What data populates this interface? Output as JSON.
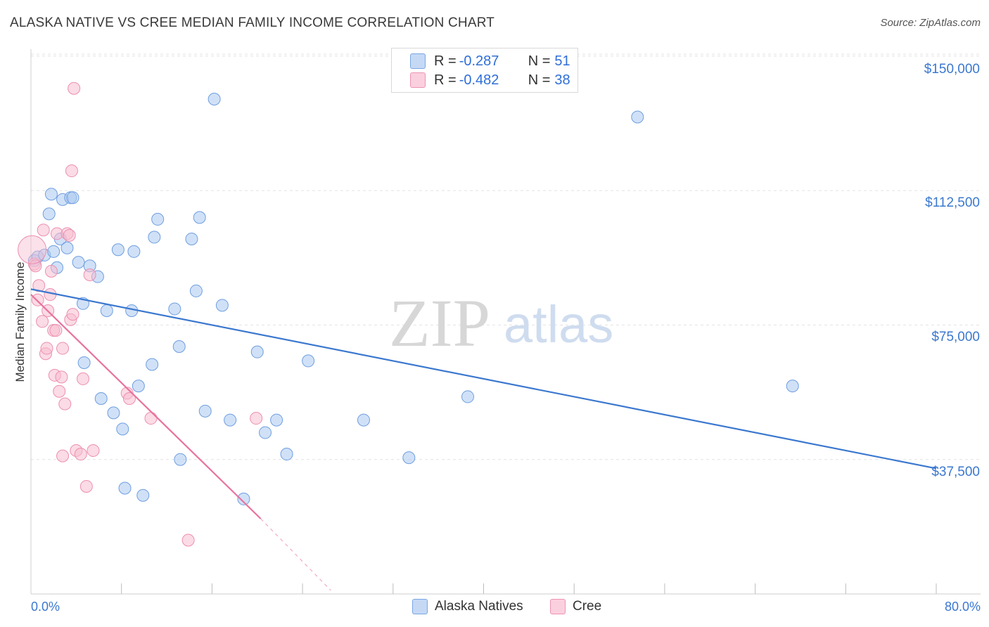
{
  "header": {
    "title": "ALASKA NATIVE VS CREE MEDIAN FAMILY INCOME CORRELATION CHART",
    "source": "Source: ZipAtlas.com"
  },
  "watermark": {
    "zip": "ZIP",
    "atlas": "atlas"
  },
  "legend": {
    "rows": [
      {
        "r_label": "R = ",
        "r_value": "-0.287",
        "n_label": "N = ",
        "n_value": "51",
        "color": "#aac8f0"
      },
      {
        "r_label": "R = ",
        "r_value": "-0.482",
        "n_label": "N = ",
        "n_value": "38",
        "color": "#f7bdd0"
      }
    ]
  },
  "bottom_legend": {
    "items": [
      {
        "label": "Alaska Natives",
        "color": "#aac8f0"
      },
      {
        "label": "Cree",
        "color": "#f7bdd0"
      }
    ]
  },
  "chart_data": {
    "type": "scatter",
    "title": "ALASKA NATIVE VS CREE MEDIAN FAMILY INCOME CORRELATION CHART",
    "xlabel": "",
    "ylabel": "Median Family Income",
    "x_tick_labels": [
      "0.0%",
      "80.0%"
    ],
    "y_tick_labels": [
      "$150,000",
      "$112,500",
      "$75,000",
      "$37,500"
    ],
    "y_ticks": [
      150000,
      112500,
      75000,
      37500
    ],
    "xlim": [
      0,
      80
    ],
    "ylim": [
      0,
      155000
    ],
    "grid": true,
    "colors": {
      "alaska": "#3b78cf",
      "alaska_fill": "#aac8f0",
      "cree": "#e8739e",
      "cree_fill": "#f7bdd0"
    },
    "series": [
      {
        "name": "Alaska Natives",
        "r": -0.287,
        "n": 51,
        "trend": {
          "x0": 0,
          "y0": 85000,
          "x1": 80,
          "y1": 35000
        },
        "points": [
          [
            0.3,
            93000
          ],
          [
            0.6,
            94000
          ],
          [
            1.2,
            94500
          ],
          [
            1.6,
            106000
          ],
          [
            1.8,
            111500
          ],
          [
            2.0,
            95500
          ],
          [
            2.3,
            91000
          ],
          [
            2.6,
            99000
          ],
          [
            2.8,
            110000
          ],
          [
            3.2,
            96500
          ],
          [
            3.5,
            110500
          ],
          [
            3.7,
            110500
          ],
          [
            4.2,
            92500
          ],
          [
            4.6,
            81000
          ],
          [
            4.7,
            64500
          ],
          [
            5.2,
            91500
          ],
          [
            5.9,
            88500
          ],
          [
            6.2,
            54500
          ],
          [
            6.7,
            79000
          ],
          [
            7.3,
            50500
          ],
          [
            7.7,
            96000
          ],
          [
            8.1,
            46000
          ],
          [
            8.3,
            29500
          ],
          [
            8.9,
            79000
          ],
          [
            9.1,
            95500
          ],
          [
            9.5,
            58000
          ],
          [
            9.9,
            27500
          ],
          [
            10.7,
            64000
          ],
          [
            10.9,
            99500
          ],
          [
            11.2,
            104500
          ],
          [
            12.7,
            79500
          ],
          [
            13.1,
            69000
          ],
          [
            13.2,
            37500
          ],
          [
            14.2,
            99000
          ],
          [
            14.6,
            84500
          ],
          [
            14.9,
            105000
          ],
          [
            15.4,
            51000
          ],
          [
            16.2,
            138000
          ],
          [
            16.9,
            80500
          ],
          [
            17.6,
            48500
          ],
          [
            18.8,
            26500
          ],
          [
            20.0,
            67500
          ],
          [
            20.7,
            45000
          ],
          [
            21.7,
            48500
          ],
          [
            22.6,
            39000
          ],
          [
            24.5,
            65000
          ],
          [
            29.4,
            48500
          ],
          [
            33.4,
            38000
          ],
          [
            38.6,
            55000
          ],
          [
            53.6,
            133000
          ],
          [
            67.3,
            58000
          ]
        ]
      },
      {
        "name": "Cree",
        "r": -0.482,
        "n": 38,
        "trend": {
          "x0": 0,
          "y0": 83500,
          "x1": 20.3,
          "y1": 21000
        },
        "trend_ext": {
          "x0": 20.3,
          "y0": 21000,
          "x1": 26.5,
          "y1": 1000
        },
        "points": [
          [
            0.3,
            92000
          ],
          [
            0.4,
            91500
          ],
          [
            0.6,
            82000
          ],
          [
            0.7,
            86000
          ],
          [
            1.0,
            76000
          ],
          [
            1.1,
            101500
          ],
          [
            1.3,
            67000
          ],
          [
            1.4,
            68500
          ],
          [
            1.5,
            79000
          ],
          [
            1.7,
            83500
          ],
          [
            1.8,
            90000
          ],
          [
            2.0,
            73500
          ],
          [
            2.1,
            61000
          ],
          [
            2.2,
            73500
          ],
          [
            2.3,
            100500
          ],
          [
            2.5,
            56500
          ],
          [
            2.7,
            60500
          ],
          [
            2.8,
            68500
          ],
          [
            2.8,
            38500
          ],
          [
            3.0,
            53000
          ],
          [
            3.2,
            100500
          ],
          [
            3.4,
            100000
          ],
          [
            3.5,
            76500
          ],
          [
            3.6,
            118000
          ],
          [
            3.7,
            78000
          ],
          [
            3.8,
            141000
          ],
          [
            4.0,
            40000
          ],
          [
            4.4,
            39000
          ],
          [
            4.6,
            60000
          ],
          [
            4.9,
            30000
          ],
          [
            5.2,
            89000
          ],
          [
            5.5,
            40000
          ],
          [
            8.5,
            56000
          ],
          [
            8.7,
            54500
          ],
          [
            10.6,
            49000
          ],
          [
            13.9,
            15000
          ],
          [
            19.9,
            49000
          ],
          [
            0.1,
            96000
          ]
        ]
      }
    ]
  }
}
